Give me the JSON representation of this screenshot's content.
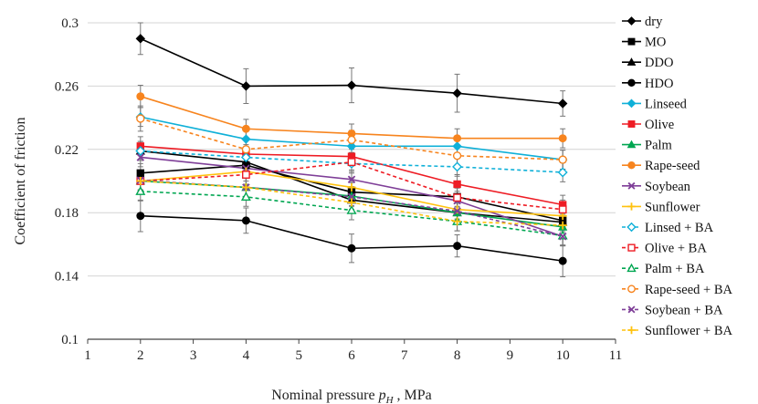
{
  "chart_data": {
    "type": "line",
    "xlabel": "Nominal pressure  p_H , MPa",
    "xlabel_parts": {
      "prefix": "Nominal pressure  ",
      "symbol": "p",
      "subscript": "H",
      "suffix": " , MPa"
    },
    "ylabel": "Coefficient of friction",
    "xlim": [
      1,
      11
    ],
    "ylim": [
      0.1,
      0.3
    ],
    "x_ticks": [
      "1",
      "2",
      "3",
      "4",
      "5",
      "6",
      "7",
      "8",
      "9",
      "10",
      "11"
    ],
    "y_ticks": [
      "0.1",
      "0.14",
      "0.18",
      "0.22",
      "0.26",
      "0.3"
    ],
    "grid": "horizontal",
    "legend_position": "right",
    "x": [
      2,
      4,
      6,
      8,
      10
    ],
    "series": [
      {
        "name": "dry",
        "color": "#000000",
        "marker": "diamond",
        "dash": false,
        "values": [
          0.29,
          0.26,
          0.2605,
          0.2555,
          0.249
        ],
        "error": [
          0.01,
          0.011,
          0.011,
          0.012,
          0.008
        ]
      },
      {
        "name": "MO",
        "color": "#000000",
        "marker": "square",
        "dash": false,
        "values": [
          0.205,
          0.21,
          0.193,
          0.19,
          0.175
        ],
        "error": [
          0.006,
          0.006,
          0.006,
          0.006,
          0.006
        ]
      },
      {
        "name": "DDO",
        "color": "#000000",
        "marker": "triangle",
        "dash": false,
        "values": [
          0.219,
          0.212,
          0.188,
          0.18,
          0.174
        ],
        "error": [
          0.006,
          0.006,
          0.006,
          0.006,
          0.006
        ]
      },
      {
        "name": "HDO",
        "color": "#000000",
        "marker": "circle",
        "dash": false,
        "values": [
          0.178,
          0.175,
          0.1575,
          0.159,
          0.1495
        ],
        "error": [
          0.01,
          0.008,
          0.009,
          0.007,
          0.01
        ]
      },
      {
        "name": "Linseed",
        "color": "#0fb0d8",
        "marker": "diamond",
        "dash": false,
        "values": [
          0.2405,
          0.2265,
          0.222,
          0.222,
          0.2135
        ],
        "error": [
          0.006,
          0.006,
          0.006,
          0.006,
          0.006
        ]
      },
      {
        "name": "Olive",
        "color": "#ee1c24",
        "marker": "square",
        "dash": false,
        "values": [
          0.222,
          0.217,
          0.2155,
          0.198,
          0.185
        ],
        "error": [
          0.006,
          0.006,
          0.006,
          0.006,
          0.006
        ]
      },
      {
        "name": "Palm",
        "color": "#00a651",
        "marker": "triangle",
        "dash": false,
        "values": [
          0.2,
          0.196,
          0.1905,
          0.18,
          0.171
        ],
        "error": [
          0.006,
          0.006,
          0.006,
          0.006,
          0.006
        ]
      },
      {
        "name": "Rape-seed",
        "color": "#f7841e",
        "marker": "circle",
        "dash": false,
        "values": [
          0.2535,
          0.233,
          0.23,
          0.227,
          0.227
        ],
        "error": [
          0.007,
          0.006,
          0.006,
          0.006,
          0.006
        ]
      },
      {
        "name": "Soybean",
        "color": "#7f3f98",
        "marker": "x",
        "dash": false,
        "values": [
          0.215,
          0.208,
          0.201,
          0.1875,
          0.165
        ],
        "error": [
          0.006,
          0.006,
          0.006,
          0.006,
          0.006
        ]
      },
      {
        "name": "Sunflower",
        "color": "#ffc20e",
        "marker": "plus",
        "dash": false,
        "values": [
          0.2,
          0.206,
          0.196,
          0.182,
          0.178
        ],
        "error": [
          0.006,
          0.006,
          0.006,
          0.006,
          0.006
        ]
      },
      {
        "name": "Linsed + BA",
        "color": "#0fb0d8",
        "marker": "diamond-open",
        "dash": true,
        "values": [
          0.219,
          0.215,
          0.211,
          0.209,
          0.2055
        ],
        "error": [
          0.006,
          0.006,
          0.006,
          0.006,
          0.006
        ]
      },
      {
        "name": "Olive + BA",
        "color": "#ee1c24",
        "marker": "square-open",
        "dash": true,
        "values": [
          0.2,
          0.204,
          0.212,
          0.1895,
          0.182
        ],
        "error": [
          0.006,
          0.006,
          0.006,
          0.006,
          0.006
        ]
      },
      {
        "name": "Palm + BA",
        "color": "#00a651",
        "marker": "triangle-open",
        "dash": true,
        "values": [
          0.1935,
          0.19,
          0.1815,
          0.1745,
          0.1655
        ],
        "error": [
          0.006,
          0.006,
          0.006,
          0.006,
          0.006
        ]
      },
      {
        "name": "Rape-seed + BA",
        "color": "#f7841e",
        "marker": "circle-open",
        "dash": true,
        "values": [
          0.2395,
          0.22,
          0.226,
          0.216,
          0.2135
        ],
        "error": [
          0.008,
          0.006,
          0.006,
          0.006,
          0.006
        ]
      },
      {
        "name": "Soybean + BA",
        "color": "#7f3f98",
        "marker": "x",
        "dash": true,
        "values": [
          0.2005,
          0.196,
          0.19,
          0.181,
          0.165
        ],
        "error": [
          0.006,
          0.006,
          0.006,
          0.006,
          0.006
        ]
      },
      {
        "name": "Sunflower + BA",
        "color": "#ffc20e",
        "marker": "plus",
        "dash": true,
        "values": [
          0.2,
          0.196,
          0.1865,
          0.1745,
          0.172
        ],
        "error": [
          0.006,
          0.006,
          0.006,
          0.006,
          0.006
        ]
      }
    ]
  }
}
